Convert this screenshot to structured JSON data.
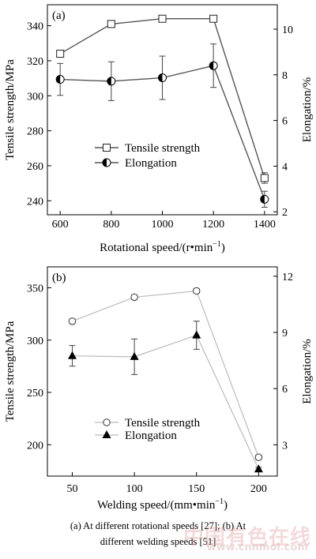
{
  "chart_data": [
    {
      "type": "line",
      "panel_label": "(a)",
      "xlabel": "Rotational speed/(r•min",
      "xlabel_sup": "−1",
      "xlabel_tail": ")",
      "ylabel_left": "Tensile strength/MPa",
      "ylabel_right": "Elongation/%",
      "x": [
        600,
        800,
        1000,
        1200,
        1400
      ],
      "xticks": [
        "600",
        "800",
        "1000",
        "1200",
        "1400"
      ],
      "xlim": [
        550,
        1450
      ],
      "ylim_left": [
        232,
        352
      ],
      "yticks_left": [
        "240",
        "260",
        "280",
        "300",
        "320",
        "340"
      ],
      "ylim_right": [
        1.87,
        11.07
      ],
      "yticks_right": [
        "2",
        "4",
        "6",
        "8",
        "10"
      ],
      "series": [
        {
          "name": "Tensile strength",
          "axis": "left",
          "marker": "square-open",
          "values": [
            324,
            341,
            344,
            344,
            253
          ],
          "err": [
            1.5,
            1.5,
            1.5,
            1.5,
            3
          ]
        },
        {
          "name": "Elongation",
          "axis": "right",
          "marker": "circle-half",
          "values": [
            7.8,
            7.72,
            7.87,
            8.4,
            2.55
          ],
          "err": [
            0.7,
            0.85,
            0.95,
            0.95,
            0.35
          ]
        }
      ],
      "legend": "center-left"
    },
    {
      "type": "line",
      "panel_label": "(b)",
      "xlabel": "Welding speed/(mm•min",
      "xlabel_sup": "−1",
      "xlabel_tail": ")",
      "ylabel_left": "Tensile strength/MPa",
      "ylabel_right": "Elongation/%",
      "x": [
        50,
        100,
        150,
        200
      ],
      "xticks": [
        "50",
        "100",
        "150",
        "200"
      ],
      "xlim": [
        30,
        215
      ],
      "ylim_left": [
        170,
        370
      ],
      "yticks_left": [
        "200",
        "250",
        "300",
        "350"
      ],
      "ylim_right": [
        1.33,
        12.5
      ],
      "yticks_right": [
        "3",
        "6",
        "9",
        "12"
      ],
      "series": [
        {
          "name": "Tensile strength",
          "axis": "left",
          "marker": "circle-open",
          "values": [
            318,
            341,
            347,
            188
          ],
          "err": [
            2,
            2,
            2,
            2
          ]
        },
        {
          "name": "Elongation",
          "axis": "right",
          "marker": "triangle-filled",
          "values": [
            7.75,
            7.7,
            8.85,
            1.7
          ],
          "err": [
            0.55,
            0.95,
            0.75,
            0.1
          ]
        }
      ],
      "legend": "bottom-left"
    }
  ],
  "caption": {
    "line1": "(a)  At  different  rotational  speeds  [27];  (b)  At",
    "line2": "different welding speeds [51]"
  },
  "watermark": {
    "main": "中国有色在线",
    "sub": "www.cnnmol.com"
  }
}
